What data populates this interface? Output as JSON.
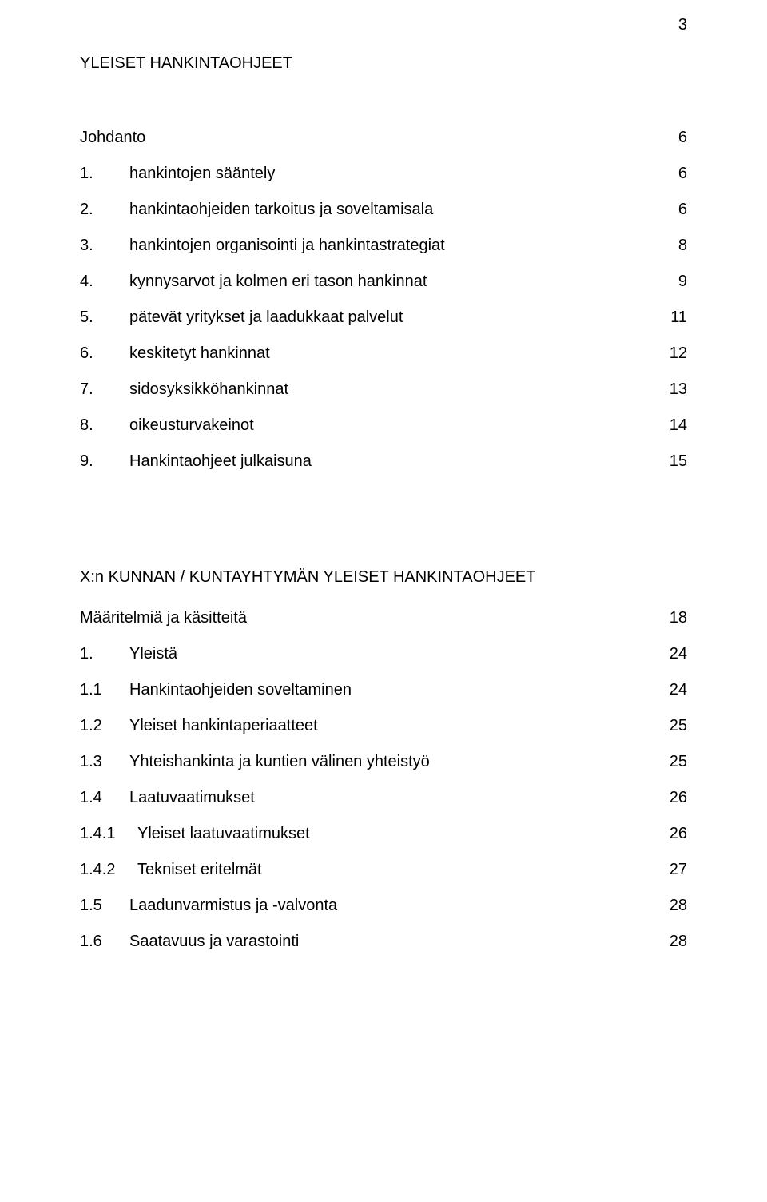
{
  "page_number": "3",
  "title": "YLEISET HANKINTAOHJEET",
  "section1": {
    "rows": [
      {
        "num": "",
        "label": "Johdanto",
        "page": "6"
      },
      {
        "num": "1.",
        "label": "hankintojen sääntely",
        "page": "6"
      },
      {
        "num": "2.",
        "label": "hankintaohjeiden tarkoitus ja soveltamisala",
        "page": "6"
      },
      {
        "num": "3.",
        "label": "hankintojen organisointi ja hankintastrategiat",
        "page": "8"
      },
      {
        "num": "4.",
        "label": "kynnysarvot ja kolmen eri tason hankinnat",
        "page": "9"
      },
      {
        "num": "5.",
        "label": "pätevät yritykset ja laadukkaat palvelut",
        "page": "11"
      },
      {
        "num": "6.",
        "label": "keskitetyt hankinnat",
        "page": "12"
      },
      {
        "num": "7.",
        "label": "sidosyksikköhankinnat",
        "page": "13"
      },
      {
        "num": "8.",
        "label": "oikeusturvakeinot",
        "page": "14"
      },
      {
        "num": "9.",
        "label": "Hankintaohjeet julkaisuna",
        "page": "15"
      }
    ]
  },
  "section2": {
    "heading": "X:n KUNNAN / KUNTAYHTYMÄN YLEISET HANKINTAOHJEET",
    "rows": [
      {
        "num": "",
        "label": "Määritelmiä ja käsitteitä",
        "page": "18",
        "wide": false
      },
      {
        "num": "1.",
        "label": "Yleistä",
        "page": "24",
        "wide": false
      },
      {
        "num": "1.1",
        "label": "Hankintaohjeiden soveltaminen",
        "page": "24",
        "wide": false
      },
      {
        "num": "1.2",
        "label": "Yleiset hankintaperiaatteet",
        "page": "25",
        "wide": false
      },
      {
        "num": "1.3",
        "label": "Yhteishankinta ja kuntien välinen yhteistyö",
        "page": "25",
        "wide": false
      },
      {
        "num": "1.4",
        "label": "Laatuvaatimukset",
        "page": "26",
        "wide": false
      },
      {
        "num": "1.4.1",
        "label": "Yleiset laatuvaatimukset",
        "page": "26",
        "wide": true
      },
      {
        "num": "1.4.2",
        "label": "Tekniset eritelmät",
        "page": "27",
        "wide": true
      },
      {
        "num": "1.5",
        "label": "Laadunvarmistus ja -valvonta",
        "page": "28",
        "wide": false
      },
      {
        "num": "1.6",
        "label": "Saatavuus ja varastointi",
        "page": "28",
        "wide": false
      }
    ]
  }
}
